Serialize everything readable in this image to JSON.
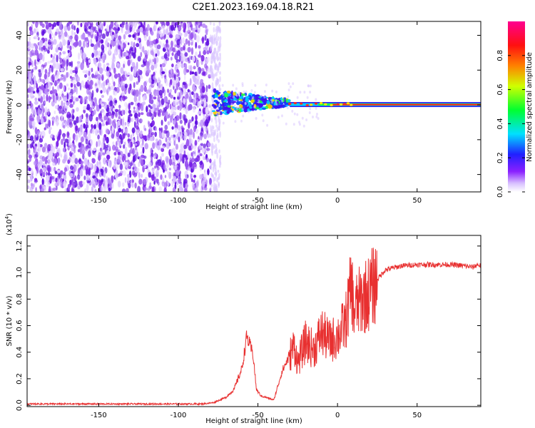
{
  "title": "C2E1.2023.169.04.18.R21",
  "colors": {
    "line": "#e83030",
    "spec_low": "#7a10e8",
    "spec_dense": "#5a00e0"
  },
  "chart_data": [
    {
      "type": "heatmap",
      "xlabel": "Height of straight line (km)",
      "ylabel": "Frequency (Hz)",
      "xlim": [
        -195,
        90
      ],
      "ylim": [
        -50,
        48
      ],
      "xticks": [
        -150,
        -100,
        -50,
        0,
        50
      ],
      "xtick_labels": [
        "-150",
        "-100",
        "-50",
        "0",
        "50"
      ],
      "yticks": [
        -40,
        -20,
        0,
        20,
        40
      ],
      "ytick_labels": [
        "-40",
        "-20",
        "0",
        "20",
        "40"
      ],
      "grid": false,
      "colorbar": {
        "label": "Normalized spectral amplitude",
        "range": [
          0.0,
          1.0
        ],
        "ticks": [
          0.0,
          0.2,
          0.4,
          0.6,
          0.8
        ],
        "tick_labels": [
          "0.0",
          "0.2",
          "0.4",
          "0.6",
          "0.8"
        ],
        "colormap": "rainbow"
      },
      "description_regions": {
        "noise_region_x": [
          -195,
          -78
        ],
        "transition_x": [
          -78,
          -30
        ],
        "narrowband_x": [
          -30,
          90
        ],
        "carrier_frequency": 0
      }
    },
    {
      "type": "line",
      "xlabel": "Height of straight line (km)",
      "ylabel": "SNR (10 * v/v)",
      "y_multiplier": "(x10",
      "y_multiplier_exp": "4",
      "y_multiplier_close": ")",
      "xlim": [
        -195,
        90
      ],
      "ylim": [
        -0.01,
        1.28
      ],
      "xticks": [
        -150,
        -100,
        -50,
        0,
        50
      ],
      "xtick_labels": [
        "-150",
        "-100",
        "-50",
        "0",
        "50"
      ],
      "yticks": [
        0.0,
        0.2,
        0.4,
        0.6,
        0.8,
        1.0,
        1.2
      ],
      "ytick_labels": [
        "0.0",
        "0.2",
        "0.4",
        "0.6",
        "0.8",
        "1.0",
        "1.2"
      ],
      "grid": false,
      "series": [
        {
          "x": [
            -195,
            -180,
            -160,
            -140,
            -120,
            -100,
            -85,
            -78,
            -70,
            -65,
            -60,
            -57,
            -55,
            -53,
            -51,
            -48,
            -45,
            -40,
            -35,
            -30,
            -27,
            -25,
            -20,
            -15,
            -10,
            -5,
            0,
            5,
            9,
            10,
            12,
            15,
            20,
            25,
            30,
            40,
            50,
            60,
            70,
            80,
            85,
            88,
            90
          ],
          "y": [
            0.01,
            0.01,
            0.01,
            0.01,
            0.01,
            0.01,
            0.01,
            0.02,
            0.06,
            0.12,
            0.28,
            0.52,
            0.45,
            0.38,
            0.12,
            0.07,
            0.06,
            0.04,
            0.25,
            0.38,
            0.45,
            0.32,
            0.48,
            0.42,
            0.55,
            0.48,
            0.52,
            0.62,
            0.92,
            0.7,
            0.75,
            0.8,
            0.85,
            0.95,
            1.02,
            1.05,
            1.06,
            1.06,
            1.06,
            1.05,
            1.04,
            1.06,
            1.05
          ]
        }
      ]
    }
  ]
}
